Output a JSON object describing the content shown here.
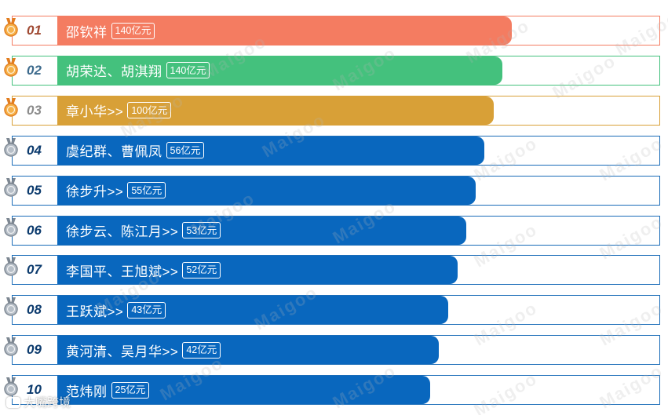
{
  "ranking": {
    "items": [
      {
        "rank": "01",
        "name": "邵钦祥",
        "value": "140亿元",
        "color": "#f47c61",
        "medal": "gold",
        "bar_fraction": 1.0
      },
      {
        "rank": "02",
        "name": "胡荣达、胡淇翔",
        "value": "140亿元",
        "color": "#44c17d",
        "medal": "gold",
        "bar_fraction": 0.98
      },
      {
        "rank": "03",
        "name": "章小华>>",
        "value": "100亿元",
        "color": "#d8a037",
        "medal": "gold",
        "bar_fraction": 0.96
      },
      {
        "rank": "04",
        "name": "虞纪群、曹佩凤",
        "value": "56亿元",
        "color": "#0967be",
        "medal": "silver",
        "bar_fraction": 0.94
      },
      {
        "rank": "05",
        "name": "徐步升>>",
        "value": "55亿元",
        "color": "#0967be",
        "medal": "silver",
        "bar_fraction": 0.92
      },
      {
        "rank": "06",
        "name": "徐步云、陈江月>>",
        "value": "53亿元",
        "color": "#0967be",
        "medal": "silver",
        "bar_fraction": 0.9
      },
      {
        "rank": "07",
        "name": "李国平、王旭斌>>",
        "value": "52亿元",
        "color": "#0967be",
        "medal": "silver",
        "bar_fraction": 0.88
      },
      {
        "rank": "08",
        "name": "王跃斌>>",
        "value": "43亿元",
        "color": "#0967be",
        "medal": "silver",
        "bar_fraction": 0.86
      },
      {
        "rank": "09",
        "name": "黄河清、吴月华>>",
        "value": "42亿元",
        "color": "#0967be",
        "medal": "silver",
        "bar_fraction": 0.84
      },
      {
        "rank": "10",
        "name": "范炜刚",
        "value": "25亿元",
        "color": "#0967be",
        "medal": "silver",
        "bar_fraction": 0.82
      }
    ]
  },
  "watermark": {
    "text": "Maigoo",
    "footer": "大嘴跨境"
  },
  "colors": {
    "frame_border": "#1a6cb8",
    "rank_text": "#0c3b6e",
    "gold_medal": "#f2a13a",
    "silver_medal": "#9aa3ad"
  }
}
